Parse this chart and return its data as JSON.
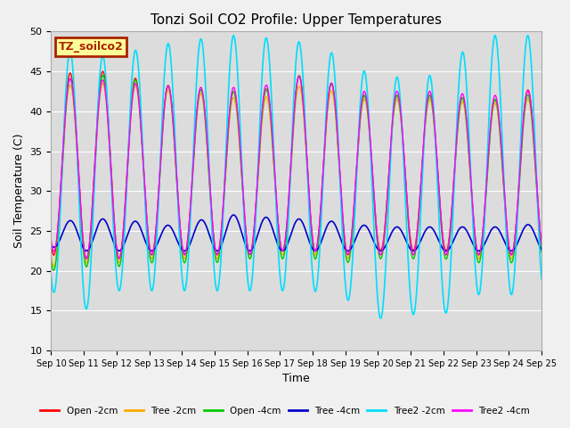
{
  "title": "Tonzi Soil CO2 Profile: Upper Temperatures",
  "xlabel": "Time",
  "ylabel": "Soil Temperature (C)",
  "ylim": [
    10,
    50
  ],
  "xlim": [
    0,
    15
  ],
  "yticks": [
    10,
    15,
    20,
    25,
    30,
    35,
    40,
    45,
    50
  ],
  "xtick_labels": [
    "Sep 10",
    "Sep 11",
    "Sep 12",
    "Sep 13",
    "Sep 14",
    "Sep 15",
    "Sep 16",
    "Sep 17",
    "Sep 18",
    "Sep 19",
    "Sep 20",
    "Sep 21",
    "Sep 22",
    "Sep 23",
    "Sep 24",
    "Sep 25"
  ],
  "background_color": "#dcdcdc",
  "fig_background": "#f0f0f0",
  "legend_label": "TZ_soilco2",
  "legend_bg": "#ffff99",
  "legend_edge": "#aa2200",
  "series": {
    "Open -2cm": {
      "color": "#ff0000",
      "lw": 1.0,
      "mins": [
        22.0,
        21.5,
        21.5,
        22.0,
        22.0,
        22.0,
        22.0,
        22.5,
        22.5,
        22.0,
        22.5,
        22.5,
        22.5,
        22.0,
        22.0,
        22.0
      ],
      "maxs": [
        44.5,
        45.0,
        45.0,
        43.5,
        43.0,
        42.5,
        42.5,
        43.0,
        45.5,
        42.0,
        42.0,
        42.0,
        42.0,
        41.5,
        41.5,
        43.5
      ]
    },
    "Tree -2cm": {
      "color": "#ffaa00",
      "lw": 1.0,
      "mins": [
        20.5,
        21.0,
        21.0,
        21.5,
        21.5,
        21.5,
        21.5,
        22.0,
        22.0,
        21.5,
        22.0,
        22.0,
        22.0,
        21.5,
        21.5,
        21.5
      ],
      "maxs": [
        43.0,
        43.5,
        43.5,
        43.0,
        42.5,
        42.0,
        41.5,
        42.0,
        44.0,
        41.5,
        41.5,
        41.5,
        41.5,
        41.0,
        41.0,
        42.0
      ]
    },
    "Open -4cm": {
      "color": "#00cc00",
      "lw": 1.0,
      "mins": [
        20.0,
        20.5,
        20.5,
        21.0,
        21.0,
        21.0,
        21.5,
        21.5,
        21.5,
        21.0,
        21.5,
        21.5,
        21.5,
        21.0,
        21.0,
        21.0
      ],
      "maxs": [
        43.5,
        44.5,
        44.5,
        43.5,
        43.0,
        42.5,
        42.5,
        43.0,
        45.5,
        42.0,
        42.0,
        42.0,
        42.0,
        41.5,
        41.5,
        42.5
      ]
    },
    "Tree -4cm": {
      "color": "#0000cc",
      "lw": 1.2,
      "mins": [
        23.0,
        22.5,
        22.5,
        22.5,
        22.5,
        22.5,
        22.5,
        22.5,
        22.5,
        22.5,
        22.5,
        22.5,
        22.5,
        22.5,
        22.5,
        22.5
      ],
      "maxs": [
        26.0,
        26.5,
        26.5,
        26.0,
        25.5,
        27.0,
        27.0,
        26.5,
        26.5,
        26.0,
        25.5,
        25.5,
        25.5,
        25.5,
        25.5,
        26.0
      ]
    },
    "Tree2 -2cm": {
      "color": "#00ddff",
      "lw": 1.2,
      "mins": [
        17.5,
        15.0,
        17.5,
        17.5,
        17.5,
        17.5,
        17.5,
        17.5,
        17.5,
        16.5,
        14.0,
        14.5,
        14.5,
        17.0,
        17.0,
        17.0
      ],
      "maxs": [
        47.5,
        47.5,
        46.5,
        48.5,
        48.5,
        49.5,
        49.5,
        49.0,
        48.5,
        46.5,
        44.0,
        44.5,
        44.5,
        49.5,
        49.5,
        49.5
      ]
    },
    "Tree2 -4cm": {
      "color": "#ff00ff",
      "lw": 1.0,
      "mins": [
        22.5,
        21.5,
        21.5,
        22.0,
        22.0,
        22.0,
        22.0,
        22.5,
        22.5,
        22.0,
        22.0,
        22.0,
        22.0,
        22.0,
        22.0,
        22.0
      ],
      "maxs": [
        43.5,
        44.5,
        43.5,
        43.5,
        43.0,
        43.0,
        43.0,
        43.5,
        45.0,
        42.5,
        42.5,
        42.5,
        42.5,
        42.0,
        42.0,
        43.0
      ]
    }
  }
}
